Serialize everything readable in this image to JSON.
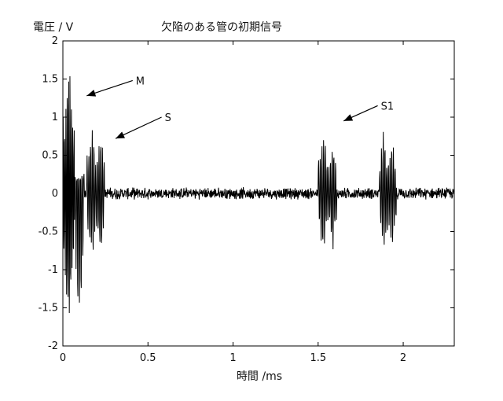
{
  "chart_data": {
    "type": "line",
    "title": "欠陥のある管の初期信号",
    "xlabel": "時間 /ms",
    "ylabel": "電圧 / V",
    "xlim": [
      0,
      2.3
    ],
    "ylim": [
      -2,
      2
    ],
    "x_ticks": [
      0,
      0.5,
      1,
      1.5,
      2
    ],
    "x_tick_labels": [
      "0",
      "0.5",
      "1",
      "1.5",
      "2"
    ],
    "y_ticks": [
      -2,
      -1.5,
      -1,
      -0.5,
      0,
      0.5,
      1,
      1.5,
      2
    ],
    "y_tick_labels": [
      "-2",
      "-1.5",
      "-1",
      "-0.5",
      "0",
      "0.5",
      "1",
      "1.5",
      "2"
    ],
    "grid": false,
    "line_color": "#000000",
    "annotations": [
      {
        "text": "M",
        "tail": [
          0.41,
          1.48
        ],
        "head": [
          0.14,
          1.28
        ]
      },
      {
        "text": "S",
        "tail": [
          0.58,
          1.0
        ],
        "head": [
          0.31,
          0.72
        ]
      },
      {
        "text": "S1",
        "tail": [
          1.85,
          1.15
        ],
        "head": [
          1.65,
          0.95
        ]
      }
    ],
    "series": [
      {
        "values": {
          "noise_amplitude": 0.06,
          "bursts": [
            {
              "x_start": 0.0,
              "x_end": 0.07,
              "amplitude": 1.78,
              "cycle_ms": 0.008
            },
            {
              "x_start": 0.07,
              "x_end": 0.125,
              "amplitude": 1.75,
              "cycle_ms": 0.01,
              "min": -1.4,
              "max": 0.2
            },
            {
              "x_start": 0.14,
              "x_end": 0.2,
              "amplitude": 0.85,
              "cycle_ms": 0.01
            },
            {
              "x_start": 0.2,
              "x_end": 0.245,
              "amplitude": 0.85,
              "cycle_ms": 0.01
            },
            {
              "x_start": 1.5,
              "x_end": 1.56,
              "amplitude": 0.78,
              "cycle_ms": 0.01
            },
            {
              "x_start": 1.56,
              "x_end": 1.61,
              "amplitude": 0.7,
              "cycle_ms": 0.01
            },
            {
              "x_start": 1.86,
              "x_end": 1.91,
              "amplitude": 0.82,
              "cycle_ms": 0.01
            },
            {
              "x_start": 1.91,
              "x_end": 1.96,
              "amplitude": 0.7,
              "cycle_ms": 0.01
            }
          ]
        }
      }
    ]
  }
}
